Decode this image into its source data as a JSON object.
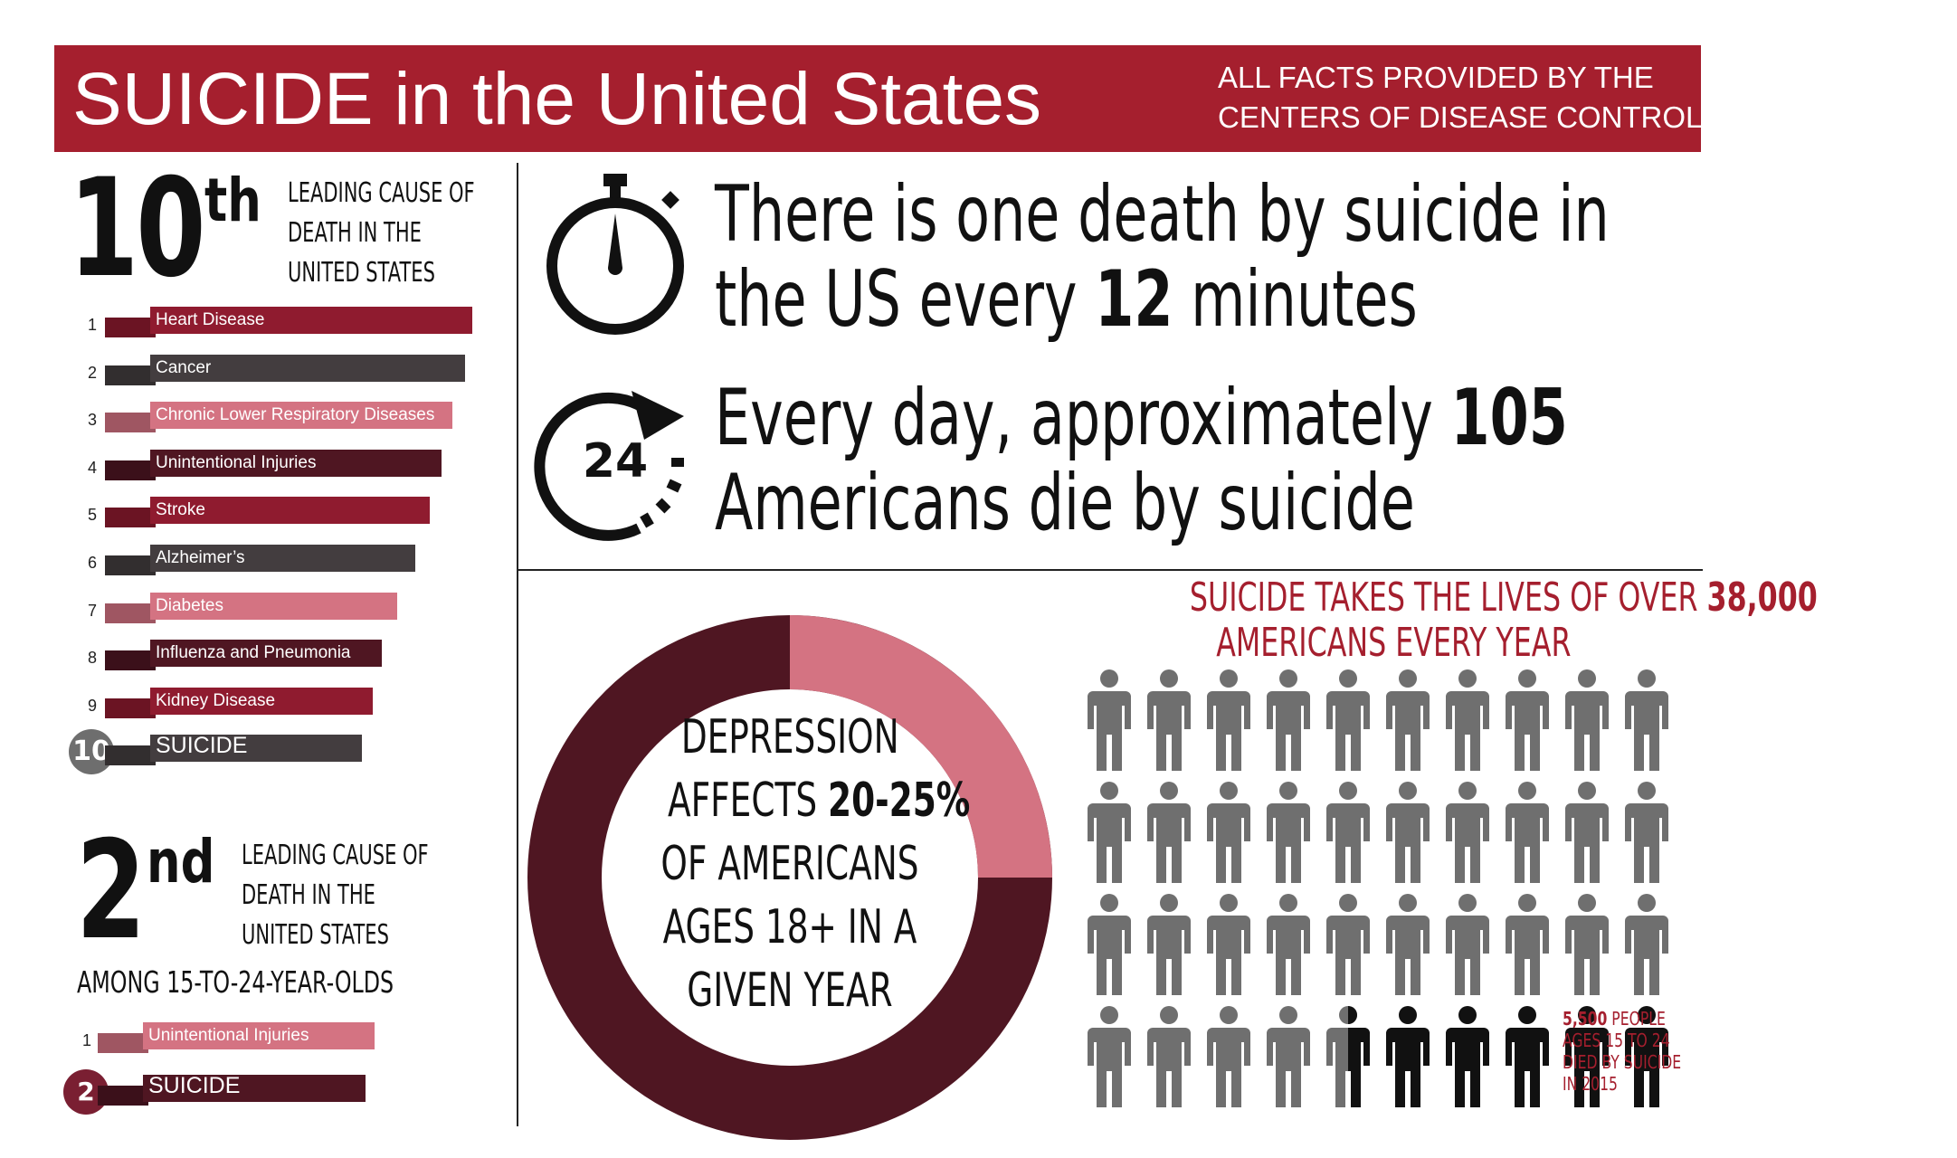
{
  "header": {
    "title": "SUICIDE in the United States",
    "source_line1": "ALL FACTS PROVIDED BY THE",
    "source_line2": "CENTERS OF DISEASE CONTROL"
  },
  "colors": {
    "header_red": "#a51f2e",
    "crimson": "#8f1b2f",
    "charcoal": "#433d3f",
    "pink": "#d47382",
    "dark_maroon": "#4f1622",
    "figure_gray": "#6f6f6f",
    "figure_black": "#111111"
  },
  "causes_all": {
    "rank_big": "10",
    "rank_suffix": "th",
    "desc_line1": "LEADING CAUSE OF",
    "desc_line2": "DEATH IN THE",
    "desc_line3": "UNITED STATES",
    "items": [
      {
        "rank": "1",
        "label": "Heart Disease",
        "color": "#8f1b2f"
      },
      {
        "rank": "2",
        "label": "Cancer",
        "color": "#433d3f"
      },
      {
        "rank": "3",
        "label": "Chronic Lower Respiratory Diseases",
        "color": "#d47382"
      },
      {
        "rank": "4",
        "label": "Unintentional Injuries",
        "color": "#4f1622"
      },
      {
        "rank": "5",
        "label": "Stroke",
        "color": "#8f1b2f"
      },
      {
        "rank": "6",
        "label": "Alzheimer’s",
        "color": "#433d3f"
      },
      {
        "rank": "7",
        "label": "Diabetes",
        "color": "#d47382"
      },
      {
        "rank": "8",
        "label": "Influenza and Pneumonia",
        "color": "#4f1622"
      },
      {
        "rank": "9",
        "label": "Kidney Disease",
        "color": "#8f1b2f"
      },
      {
        "rank": "10",
        "label": "SUICIDE",
        "color": "#433d3f"
      }
    ]
  },
  "causes_youth": {
    "rank_big": "2",
    "rank_suffix": "nd",
    "desc_line1": "LEADING CAUSE OF",
    "desc_line2": "DEATH IN THE",
    "desc_line3": "UNITED STATES",
    "subtitle": "AMONG 15-TO-24-YEAR-OLDS",
    "items": [
      {
        "rank": "1",
        "label": "Unintentional Injuries",
        "color": "#d47382"
      },
      {
        "rank": "2",
        "label": "SUICIDE",
        "color": "#4f1622"
      }
    ]
  },
  "fact_timer": {
    "icon": "stopwatch-icon",
    "line1": "There is one death by suicide in",
    "line2_prefix": "the US every ",
    "line2_bold": "12",
    "line2_suffix": " minutes"
  },
  "fact_daily": {
    "icon": "24-hour-icon",
    "icon_text": "24",
    "line1_prefix": "Every day, approximately ",
    "line1_bold": "105",
    "line2": "Americans die by suicide"
  },
  "depression": {
    "affected_low_pct": 20,
    "affected_high_pct": 25,
    "line1": "DEPRESSION",
    "line2_prefix": "AFFECTS ",
    "line2_bold": "20-25%",
    "line3": "OF AMERICANS",
    "line4": "AGES 18+ IN A",
    "line5": "GIVEN YEAR"
  },
  "lives": {
    "headline_prefix": "SUICIDE TAKES THE LIVES OF OVER ",
    "headline_bold": "38,000",
    "headline_line2": "AMERICANS EVERY YEAR",
    "total_figures": 40,
    "highlighted_figures": 5.5,
    "note_bold": "5,500",
    "note_line1_suffix": " PEOPLE",
    "note_line2": "AGES 15 TO 24",
    "note_line3": "DIED BY SUICIDE",
    "note_line4": "IN 2015"
  }
}
